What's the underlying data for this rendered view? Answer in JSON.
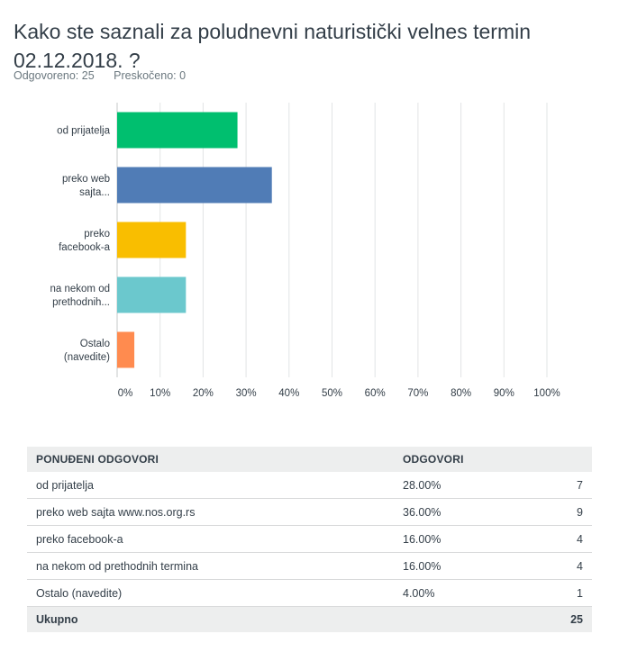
{
  "question": {
    "title": "Kako ste saznali za poludnevni naturistički velnes termin 02.12.2018. ?",
    "answered": "Odgovoreno: 25",
    "skipped": "Preskočeno: 0"
  },
  "chart_data": {
    "type": "bar",
    "orientation": "horizontal",
    "categories": [
      [
        "od prijatelja"
      ],
      [
        "preko web",
        "sajta..."
      ],
      [
        "preko",
        "facebook-a"
      ],
      [
        "na nekom od",
        "prethodnih..."
      ],
      [
        "Ostalo",
        "(navedite)"
      ]
    ],
    "values": [
      28,
      36,
      16,
      16,
      4
    ],
    "colors": [
      "#00bf6f",
      "#507cb6",
      "#f9be00",
      "#6bc8cd",
      "#ff8b4f"
    ],
    "xlim": [
      0,
      100
    ],
    "ticks": [
      "0%",
      "10%",
      "20%",
      "30%",
      "40%",
      "50%",
      "60%",
      "70%",
      "80%",
      "90%",
      "100%"
    ],
    "grid": true
  },
  "table": {
    "headers": [
      "PONUĐENI ODGOVORI",
      "ODGOVORI"
    ],
    "rows": [
      {
        "label": "od prijatelja",
        "pct": "28.00%",
        "count": "7"
      },
      {
        "label": "preko web sajta www.nos.org.rs",
        "pct": "36.00%",
        "count": "9"
      },
      {
        "label": "preko facebook-a",
        "pct": "16.00%",
        "count": "4"
      },
      {
        "label": "na nekom od prethodnih termina",
        "pct": "16.00%",
        "count": "4"
      },
      {
        "label": "Ostalo (navedite)",
        "pct": "4.00%",
        "count": "1"
      }
    ],
    "total_label": "Ukupno",
    "total_value": "25"
  }
}
